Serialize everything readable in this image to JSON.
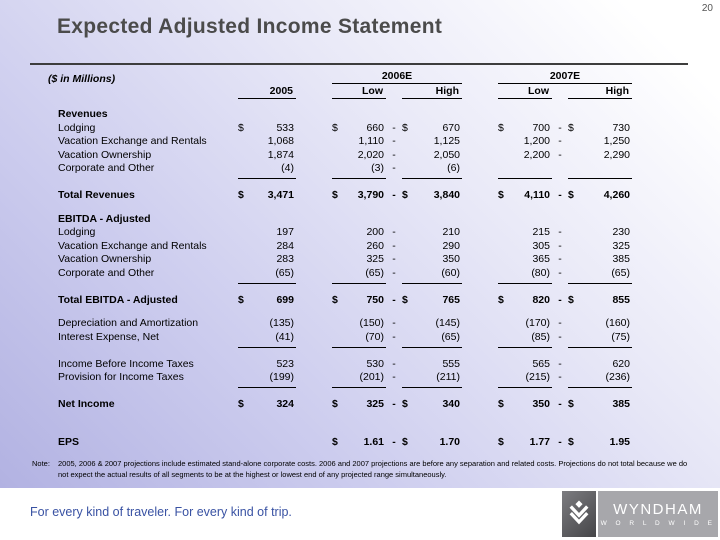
{
  "page_number": "20",
  "header": {
    "title": "Expected Adjusted Income Statement"
  },
  "table": {
    "units_label": "($ in Millions)",
    "columns": {
      "y2005": "2005",
      "y2006": "2006E",
      "y2007": "2007E",
      "low": "Low",
      "high": "High"
    },
    "rows": [
      {
        "label": "Revenues",
        "style": "section",
        "gap": "",
        "underline": false,
        "cells": [
          "",
          "",
          "",
          "",
          "",
          "",
          "",
          "",
          "",
          "",
          "",
          ""
        ]
      },
      {
        "label": "Lodging",
        "style": "item",
        "gap": "",
        "underline": false,
        "cells": [
          "$",
          "533",
          "$",
          "660",
          "-",
          "$",
          "670",
          "$",
          "700",
          "-",
          "$",
          "730"
        ]
      },
      {
        "label": "Vacation Exchange and Rentals",
        "style": "item",
        "gap": "",
        "underline": false,
        "cells": [
          "",
          "1,068",
          "",
          "1,110",
          "-",
          "",
          "1,125",
          "",
          "1,200",
          "-",
          "",
          "1,250"
        ]
      },
      {
        "label": "Vacation Ownership",
        "style": "item",
        "gap": "",
        "underline": false,
        "cells": [
          "",
          "1,874",
          "",
          "2,020",
          "-",
          "",
          "2,050",
          "",
          "2,200",
          "-",
          "",
          "2,290"
        ]
      },
      {
        "label": "Corporate and Other",
        "style": "item",
        "gap": "",
        "underline": true,
        "cells": [
          "",
          "(4)",
          "",
          "(3)",
          "-",
          "",
          "(6)",
          "",
          "",
          "",
          "",
          ""
        ]
      },
      {
        "label": "Total Revenues",
        "style": "total",
        "gap": "md",
        "underline": false,
        "cells": [
          "$",
          "3,471",
          "$",
          "3,790",
          "-",
          "$",
          "3,840",
          "$",
          "4,110",
          "-",
          "$",
          "4,260"
        ]
      },
      {
        "label": "EBITDA - Adjusted",
        "style": "section",
        "gap": "md",
        "underline": false,
        "cells": [
          "",
          "",
          "",
          "",
          "",
          "",
          "",
          "",
          "",
          "",
          "",
          ""
        ]
      },
      {
        "label": "Lodging",
        "style": "item",
        "gap": "",
        "underline": false,
        "cells": [
          "",
          "197",
          "",
          "200",
          "-",
          "",
          "210",
          "",
          "215",
          "-",
          "",
          "230"
        ]
      },
      {
        "label": "Vacation Exchange and Rentals",
        "style": "item",
        "gap": "",
        "underline": false,
        "cells": [
          "",
          "284",
          "",
          "260",
          "-",
          "",
          "290",
          "",
          "305",
          "-",
          "",
          "325"
        ]
      },
      {
        "label": "Vacation Ownership",
        "style": "item",
        "gap": "",
        "underline": false,
        "cells": [
          "",
          "283",
          "",
          "325",
          "-",
          "",
          "350",
          "",
          "365",
          "-",
          "",
          "385"
        ]
      },
      {
        "label": "Corporate and Other",
        "style": "item",
        "gap": "",
        "underline": true,
        "cells": [
          "",
          "(65)",
          "",
          "(65)",
          "-",
          "",
          "(60)",
          "",
          "(80)",
          "-",
          "",
          "(65)"
        ]
      },
      {
        "label": "Total EBITDA - Adjusted",
        "style": "total",
        "gap": "md",
        "underline": false,
        "cells": [
          "$",
          "699",
          "$",
          "750",
          "-",
          "$",
          "765",
          "$",
          "820",
          "-",
          "$",
          "855"
        ]
      },
      {
        "label": "Depreciation and Amortization",
        "style": "item",
        "gap": "md",
        "underline": false,
        "cells": [
          "",
          "(135)",
          "",
          "(150)",
          "-",
          "",
          "(145)",
          "",
          "(170)",
          "-",
          "",
          "(160)"
        ]
      },
      {
        "label": "Interest Expense, Net",
        "style": "item",
        "gap": "",
        "underline": true,
        "cells": [
          "",
          "(41)",
          "",
          "(70)",
          "-",
          "",
          "(65)",
          "",
          "(85)",
          "-",
          "",
          "(75)"
        ]
      },
      {
        "label": "Income Before Income Taxes",
        "style": "item",
        "gap": "md",
        "underline": false,
        "cells": [
          "",
          "523",
          "",
          "530",
          "-",
          "",
          "555",
          "",
          "565",
          "-",
          "",
          "620"
        ]
      },
      {
        "label": "Provision for Income Taxes",
        "style": "item",
        "gap": "",
        "underline": true,
        "cells": [
          "",
          "(199)",
          "",
          "(201)",
          "-",
          "",
          "(211)",
          "",
          "(215)",
          "-",
          "",
          "(236)"
        ]
      },
      {
        "label": "Net Income",
        "style": "total",
        "gap": "md",
        "underline": false,
        "cells": [
          "$",
          "324",
          "$",
          "325",
          "-",
          "$",
          "340",
          "$",
          "350",
          "-",
          "$",
          "385"
        ]
      },
      {
        "label": "EPS",
        "style": "total",
        "gap": "lg",
        "underline": false,
        "cells": [
          "",
          "",
          "$",
          "1.61",
          "-",
          "$",
          "1.70",
          "$",
          "1.77",
          "-",
          "$",
          "1.95"
        ]
      }
    ]
  },
  "note": {
    "label": "Note:",
    "text": "2005, 2006 & 2007 projections include estimated stand-alone corporate costs. 2006 and 2007 projections are before any separation and related costs. Projections do not total because we do not expect the actual results of all segments to be at the highest or lowest end of any projected range simultaneously."
  },
  "footer": {
    "tagline": "For every kind of traveler. For every kind of trip.",
    "logo": {
      "brand": "WYNDHAM",
      "sub": "W O R L D W I D E"
    }
  },
  "colors": {
    "background_lavender": "#b2b2e2",
    "title_gray": "#4b4b4b",
    "tagline_blue": "#3952a3",
    "logo_dark": "#454548",
    "logo_gray": "#a7a7ab"
  }
}
